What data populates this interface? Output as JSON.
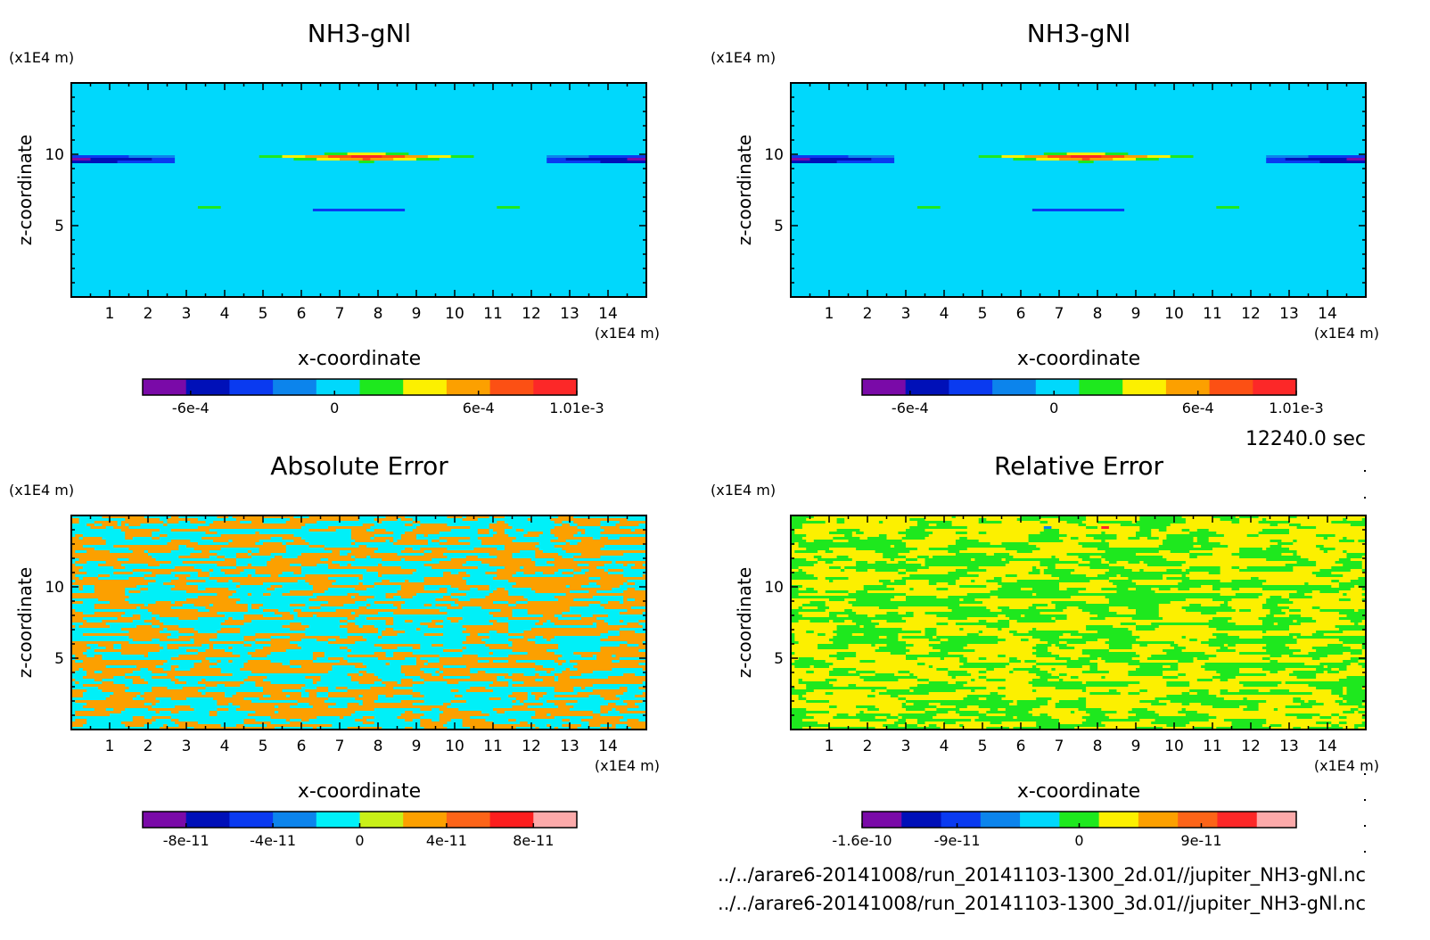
{
  "palettes": {
    "field": [
      "#7a0aa8",
      "#0010b8",
      "#0a3af0",
      "#0c84ec",
      "#00d8fc",
      "#1ee81e",
      "#fcf000",
      "#fca000",
      "#fc5014",
      "#fc2828"
    ],
    "abs_error": [
      "#7a0aa8",
      "#0010b8",
      "#0a3af0",
      "#0c84ec",
      "#00f0f8",
      "#c8f018",
      "#fca000",
      "#fc6418",
      "#fc1e1e",
      "#fcaaaa"
    ],
    "rel_error": [
      "#7a0aa8",
      "#0010b8",
      "#0a3af0",
      "#0c84ec",
      "#00d8fc",
      "#1ee81e",
      "#fcf000",
      "#fca000",
      "#fc6418",
      "#fc2828",
      "#fcaaaa"
    ]
  },
  "chart_data": [
    {
      "type": "heatmap",
      "title": "NH3-gNl",
      "xlabel": "x-coordinate",
      "ylabel": "z-coordinate",
      "x_unit": "(x1E4 m)",
      "y_unit": "(x1E4 m)",
      "xlim": [
        0,
        15
      ],
      "ylim": [
        0,
        15
      ],
      "x_ticks": [
        1,
        2,
        3,
        4,
        5,
        6,
        7,
        8,
        9,
        10,
        11,
        12,
        13,
        14
      ],
      "y_ticks": [
        5,
        10
      ],
      "colorbar": {
        "palette": "field",
        "range": [
          -0.0008,
          0.00101
        ],
        "tick_values": [
          -0.0006,
          0,
          0.0006,
          0.00101
        ],
        "tick_labels": [
          "-6e-4",
          "0",
          "6e-4",
          "1.01e-3"
        ]
      }
    },
    {
      "type": "heatmap",
      "title": "NH3-gNl",
      "xlabel": "x-coordinate",
      "ylabel": "z-coordinate",
      "x_unit": "(x1E4 m)",
      "y_unit": "(x1E4 m)",
      "xlim": [
        0,
        15
      ],
      "ylim": [
        0,
        15
      ],
      "x_ticks": [
        1,
        2,
        3,
        4,
        5,
        6,
        7,
        8,
        9,
        10,
        11,
        12,
        13,
        14
      ],
      "y_ticks": [
        5,
        10
      ],
      "colorbar": {
        "palette": "field",
        "range": [
          -0.0008,
          0.00101
        ],
        "tick_values": [
          -0.0006,
          0,
          0.0006,
          0.00101
        ],
        "tick_labels": [
          "-6e-4",
          "0",
          "6e-4",
          "1.01e-3"
        ]
      }
    },
    {
      "type": "heatmap",
      "title": "Absolute Error",
      "xlabel": "x-coordinate",
      "ylabel": "z-coordinate",
      "x_unit": "(x1E4 m)",
      "y_unit": "(x1E4 m)",
      "xlim": [
        0,
        15
      ],
      "ylim": [
        0,
        15
      ],
      "x_ticks": [
        1,
        2,
        3,
        4,
        5,
        6,
        7,
        8,
        9,
        10,
        11,
        12,
        13,
        14
      ],
      "y_ticks": [
        5,
        10
      ],
      "colorbar": {
        "palette": "abs_error",
        "range": [
          -1e-10,
          1e-10
        ],
        "tick_values": [
          -8e-11,
          -4e-11,
          0,
          4e-11,
          8e-11
        ],
        "tick_labels": [
          "-8e-11",
          "-4e-11",
          "0",
          "4e-11",
          "8e-11"
        ]
      }
    },
    {
      "type": "heatmap",
      "title": "Relative Error",
      "xlabel": "x-coordinate",
      "ylabel": "z-coordinate",
      "x_unit": "(x1E4 m)",
      "y_unit": "(x1E4 m)",
      "xlim": [
        0,
        15
      ],
      "ylim": [
        0,
        15
      ],
      "x_ticks": [
        1,
        2,
        3,
        4,
        5,
        6,
        7,
        8,
        9,
        10,
        11,
        12,
        13,
        14
      ],
      "y_ticks": [
        5,
        10
      ],
      "colorbar": {
        "palette": "rel_error",
        "range": [
          -1.6e-10,
          1.6e-10
        ],
        "tick_values": [
          -1.6e-10,
          -9e-11,
          0,
          9e-11
        ],
        "tick_labels": [
          "-1.6e-10",
          "-9e-11",
          "0",
          "9e-11"
        ]
      }
    }
  ],
  "footer": {
    "time": "12240.0 sec",
    "file_2d": "../../arare6-20141008/run_20141103-1300_2d.01//jupiter_NH3-gNl.nc",
    "file_3d": "../../arare6-20141008/run_20141103-1300_3d.01//jupiter_NH3-gNl.nc"
  }
}
